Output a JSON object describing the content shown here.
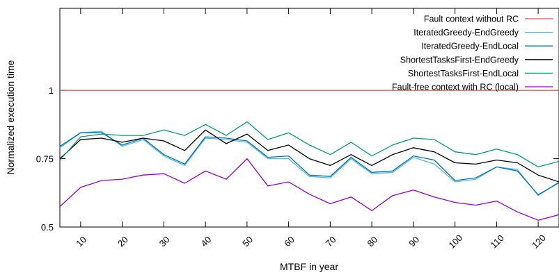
{
  "chart_data": {
    "type": "line",
    "xlabel": "MTBF in year",
    "ylabel": "Normalized execution time",
    "xlim": [
      5,
      125
    ],
    "ylim": [
      0.5,
      1.3
    ],
    "xticks": [
      10,
      20,
      30,
      40,
      50,
      60,
      70,
      80,
      90,
      100,
      110,
      120
    ],
    "yticks": [
      {
        "value": 0.5,
        "label": "0.5"
      },
      {
        "value": 0.75,
        "label": "0.75"
      },
      {
        "value": 1.0,
        "label": "1"
      }
    ],
    "grid": false,
    "legend_position": "top-right",
    "x": [
      5,
      10,
      15,
      20,
      25,
      30,
      35,
      40,
      45,
      50,
      55,
      60,
      65,
      70,
      75,
      80,
      85,
      90,
      95,
      100,
      105,
      110,
      115,
      120,
      125
    ],
    "series": [
      {
        "name": "Fault context without RC",
        "color": "#d9534f",
        "values": [
          1,
          1,
          1,
          1,
          1,
          1,
          1,
          1,
          1,
          1,
          1,
          1,
          1,
          1,
          1,
          1,
          1,
          1,
          1,
          1,
          1,
          1,
          1,
          1,
          1
        ]
      },
      {
        "name": "IteratedGreedy-EndGreedy",
        "color": "#56b4e9",
        "values": [
          0.79,
          0.845,
          0.85,
          0.795,
          0.82,
          0.76,
          0.725,
          0.825,
          0.82,
          0.81,
          0.75,
          0.75,
          0.685,
          0.68,
          0.75,
          0.695,
          0.7,
          0.755,
          0.73,
          0.665,
          0.675,
          0.72,
          0.71,
          0.615,
          0.665
        ]
      },
      {
        "name": "IteratedGreedy-EndLocal",
        "color": "#0072b2",
        "values": [
          0.795,
          0.845,
          0.845,
          0.8,
          0.825,
          0.765,
          0.73,
          0.83,
          0.825,
          0.815,
          0.755,
          0.76,
          0.69,
          0.685,
          0.755,
          0.7,
          0.705,
          0.76,
          0.745,
          0.67,
          0.68,
          0.72,
          0.705,
          0.618,
          0.662
        ]
      },
      {
        "name": "ShortestTasksFirst-EndGreedy",
        "color": "#000000",
        "values": [
          0.75,
          0.82,
          0.825,
          0.81,
          0.825,
          0.815,
          0.78,
          0.855,
          0.805,
          0.84,
          0.78,
          0.8,
          0.75,
          0.725,
          0.765,
          0.725,
          0.765,
          0.79,
          0.775,
          0.735,
          0.73,
          0.745,
          0.735,
          0.69,
          0.665
        ]
      },
      {
        "name": "ShortestTasksFirst-EndLocal",
        "color": "#009e73",
        "values": [
          0.745,
          0.83,
          0.84,
          0.835,
          0.835,
          0.855,
          0.835,
          0.875,
          0.835,
          0.885,
          0.82,
          0.845,
          0.8,
          0.765,
          0.81,
          0.76,
          0.8,
          0.825,
          0.82,
          0.775,
          0.765,
          0.785,
          0.765,
          0.72,
          0.74
        ]
      },
      {
        "name": "Fault-free context with RC (local)",
        "color": "#9400d3",
        "values": [
          0.575,
          0.645,
          0.67,
          0.675,
          0.69,
          0.695,
          0.66,
          0.705,
          0.675,
          0.75,
          0.65,
          0.665,
          0.62,
          0.585,
          0.61,
          0.56,
          0.615,
          0.635,
          0.61,
          0.59,
          0.58,
          0.595,
          0.555,
          0.525,
          0.545
        ]
      }
    ]
  }
}
